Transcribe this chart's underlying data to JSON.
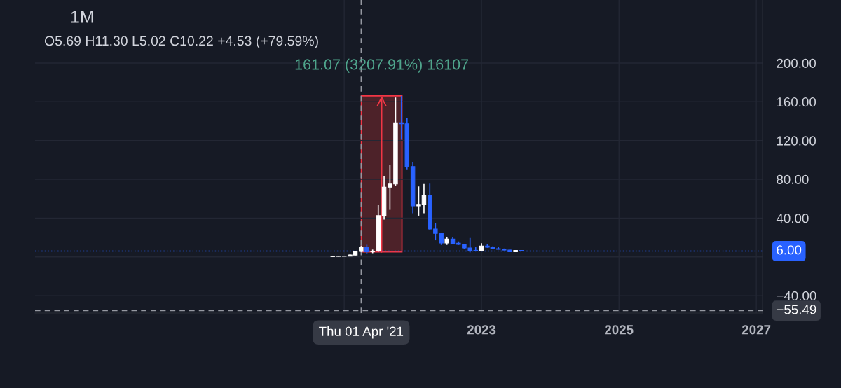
{
  "chart_data": {
    "type": "candlestick",
    "title": "1M",
    "subtitle": "O5.69 H11.30 L5.02 C10.22 +4.53 (+79.59%)",
    "x": [
      "2020-11",
      "2020-12",
      "2021-01",
      "2021-02",
      "2021-03",
      "2021-04",
      "2021-05",
      "2021-06",
      "2021-07",
      "2021-08",
      "2021-09",
      "2021-10",
      "2021-11",
      "2021-12",
      "2022-01",
      "2022-02",
      "2022-03",
      "2022-04",
      "2022-05",
      "2022-06",
      "2022-07",
      "2022-08",
      "2022-09",
      "2022-10",
      "2022-11",
      "2022-12",
      "2023-01",
      "2023-02",
      "2023-03",
      "2023-04",
      "2023-05",
      "2023-06",
      "2023-07",
      "2023-08"
    ],
    "ohlc": [
      [
        0.3,
        0.8,
        0.2,
        0.5
      ],
      [
        0.5,
        0.7,
        0.4,
        0.6
      ],
      [
        0.6,
        0.9,
        0.5,
        0.7
      ],
      [
        0.7,
        3.0,
        0.6,
        1.9
      ],
      [
        1.9,
        6.0,
        1.6,
        5.69
      ],
      [
        5.69,
        11.3,
        5.02,
        10.22
      ],
      [
        10.22,
        12.5,
        3.0,
        5.3
      ],
      [
        5.3,
        7.5,
        3.8,
        5.9
      ],
      [
        5.9,
        53.8,
        5.2,
        42.5
      ],
      [
        42.5,
        83.5,
        38.4,
        71.9
      ],
      [
        71.9,
        94.9,
        48.5,
        75.1
      ],
      [
        75.1,
        164.4,
        73.5,
        138.3
      ],
      [
        138.3,
        166.09,
        120.9,
        137.3
      ],
      [
        137.3,
        143.1,
        89.6,
        93.2
      ],
      [
        93.2,
        98.0,
        44.9,
        52.6
      ],
      [
        52.6,
        72.6,
        42.5,
        54.1
      ],
      [
        54.1,
        75.1,
        44.9,
        63.5
      ],
      [
        63.5,
        75.5,
        27.3,
        28.7
      ],
      [
        28.7,
        35.2,
        17.1,
        24.2
      ],
      [
        24.2,
        25.0,
        12.3,
        14.3
      ],
      [
        14.3,
        20.8,
        12.3,
        18.3
      ],
      [
        18.3,
        20.8,
        13.1,
        14.0
      ],
      [
        14.0,
        15.9,
        12.3,
        12.8
      ],
      [
        12.8,
        13.5,
        8.4,
        9.2
      ],
      [
        9.2,
        19.5,
        4.6,
        6.7
      ],
      [
        6.7,
        9.9,
        5.8,
        6.1
      ],
      [
        6.1,
        14.0,
        5.8,
        11.2
      ],
      [
        11.2,
        13.0,
        9.4,
        9.9
      ],
      [
        9.9,
        10.8,
        8.1,
        8.4
      ],
      [
        8.4,
        9.9,
        7.6,
        7.8
      ],
      [
        7.8,
        8.6,
        6.8,
        7.0
      ],
      [
        7.0,
        7.5,
        5.0,
        5.3
      ],
      [
        5.3,
        7.0,
        5.0,
        6.6
      ],
      [
        6.6,
        7.0,
        5.7,
        6.0
      ]
    ],
    "colors": [
      "#ffffff",
      "#ffffff",
      "#ffffff",
      "#ffffff",
      "#ffffff",
      "#ffffff",
      "#2962ff",
      "#ffffff",
      "#ffffff",
      "#ffffff",
      "#ffffff",
      "#ffffff",
      "#2962ff",
      "#2962ff",
      "#2962ff",
      "#ffffff",
      "#ffffff",
      "#2962ff",
      "#2962ff",
      "#2962ff",
      "#ffffff",
      "#2962ff",
      "#2962ff",
      "#2962ff",
      "#2962ff",
      "#2962ff",
      "#ffffff",
      "#2962ff",
      "#2962ff",
      "#2962ff",
      "#2962ff",
      "#2962ff",
      "#ffffff",
      "#2962ff"
    ],
    "series": [
      {
        "type": "bar",
        "x": [
          "2021-07-19"
        ],
        "base": [
          5.02
        ],
        "values": [
          161.07
        ],
        "color": "#4d2229"
      }
    ],
    "annotations": [
      {
        "text": "161.07 (3207.91%) 16107",
        "x": "2021-07-19",
        "y": 166.09
      }
    ],
    "ref_lines": [
      {
        "axis": "x",
        "value": "2021-04-01",
        "label": "Thu 01 Apr '21",
        "line_style": "dashed",
        "color": "#9598a1"
      },
      {
        "axis": "y",
        "value": -55.49,
        "label": "−55.49",
        "line_style": "dashed",
        "color": "#9598a1"
      },
      {
        "axis": "y",
        "value": 6.0,
        "label": "6.00",
        "line_style": "dotted",
        "color": "#2962ff"
      }
    ],
    "xlim": [
      "2016-07-02",
      "2027-02-03"
    ],
    "ylim": [
      -58,
      265
    ],
    "xticks": [
      {
        "value": "2021-01-01",
        "label": null
      },
      {
        "value": "2023-01-01",
        "label": "2023"
      },
      {
        "value": "2025-01-01",
        "label": "2025"
      },
      {
        "value": "2027-01-01",
        "label": "2027"
      }
    ],
    "yticks": [
      {
        "value": -40,
        "label": "−40.00"
      },
      {
        "value": 0,
        "label": null
      },
      {
        "value": 40,
        "label": "40.00"
      },
      {
        "value": 80,
        "label": "80.00"
      },
      {
        "value": 120,
        "label": "120.00"
      },
      {
        "value": 160,
        "label": "160.00"
      },
      {
        "value": 200,
        "label": "200.00"
      }
    ],
    "grid": true
  }
}
